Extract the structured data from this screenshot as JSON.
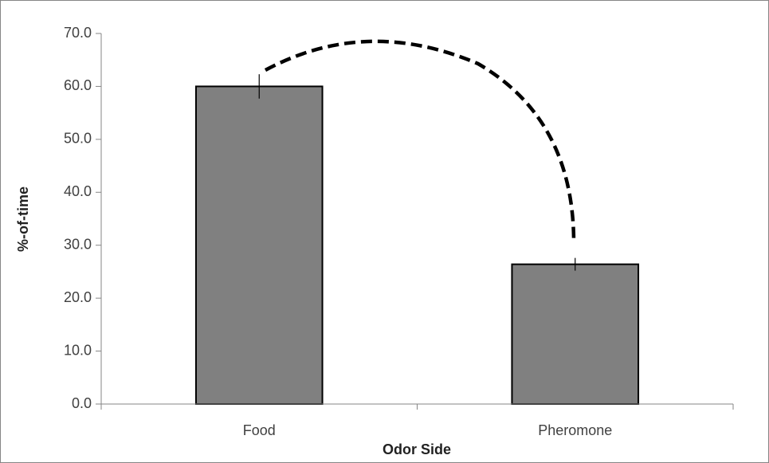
{
  "chart_data": {
    "type": "bar",
    "categories": [
      "Food",
      "Pheromone"
    ],
    "values": [
      60.0,
      26.4
    ],
    "errors": [
      2.3,
      1.2
    ],
    "color": "#808080",
    "ylim": [
      0,
      70
    ],
    "yticks": [
      {
        "value": 0,
        "label": "0.0"
      },
      {
        "value": 10,
        "label": "10.0"
      },
      {
        "value": 20,
        "label": "20.0"
      },
      {
        "value": 30,
        "label": "30.0"
      },
      {
        "value": 40,
        "label": "40.0"
      },
      {
        "value": 50,
        "label": "50.0"
      },
      {
        "value": 60,
        "label": "60.0"
      },
      {
        "value": 70,
        "label": "70.0"
      }
    ],
    "xlabel": "Odor Side",
    "ylabel": "%-of-time"
  }
}
